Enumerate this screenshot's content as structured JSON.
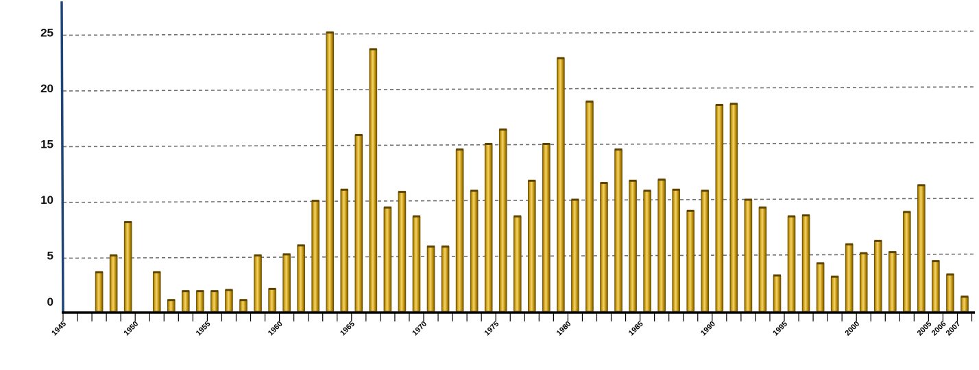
{
  "chart_data": {
    "type": "bar",
    "categories": [
      "1945",
      "1946",
      "1947",
      "1948",
      "1949",
      "1950",
      "1951",
      "1952",
      "1953",
      "1954",
      "1955",
      "1956",
      "1957",
      "1958",
      "1959",
      "1960",
      "1961",
      "1962",
      "1963",
      "1964",
      "1965",
      "1966",
      "1967",
      "1968",
      "1969",
      "1970",
      "1971",
      "1972",
      "1973",
      "1974",
      "1975",
      "1976",
      "1977",
      "1978",
      "1979",
      "1980",
      "1981",
      "1982",
      "1983",
      "1984",
      "1985",
      "1986",
      "1987",
      "1988",
      "1989",
      "1990",
      "1991",
      "1992",
      "1993",
      "1994",
      "1995",
      "1996",
      "1997",
      "1998",
      "1999",
      "2000",
      "2001",
      "2002",
      "2003",
      "2004",
      "2005",
      "2006",
      "2007"
    ],
    "values": [
      0,
      0,
      3.5,
      5,
      8,
      0,
      3.5,
      1,
      1.8,
      1.8,
      1.8,
      1.9,
      1,
      5,
      2,
      5.1,
      5.9,
      9.9,
      25,
      10.9,
      15.8,
      23.5,
      9.3,
      10.7,
      8.5,
      5.8,
      5.8,
      14.5,
      10.8,
      15,
      16.3,
      8.5,
      11.7,
      15,
      22.7,
      10,
      18.8,
      11.5,
      14.5,
      11.7,
      10.8,
      11.8,
      10.9,
      9,
      10.8,
      18.5,
      18.6,
      10,
      9.3,
      3.2,
      8.5,
      8.6,
      4.3,
      3.1,
      6,
      5.2,
      6.3,
      5.3,
      8.9,
      11.3,
      4.5,
      3.3,
      1.3
    ],
    "yticks": [
      "0",
      "5",
      "10",
      "15",
      "20",
      "25"
    ],
    "xtick_labels": [
      {
        "year": 1945,
        "text": "1945"
      },
      {
        "year": 1950,
        "text": "1950"
      },
      {
        "year": 1955,
        "text": "1955"
      },
      {
        "year": 1960,
        "text": "1960"
      },
      {
        "year": 1965,
        "text": "1965"
      },
      {
        "year": 1970,
        "text": "1970"
      },
      {
        "year": 1975,
        "text": "1975"
      },
      {
        "year": 1980,
        "text": "1980"
      },
      {
        "year": 1985,
        "text": "1985"
      },
      {
        "year": 1990,
        "text": "1990"
      },
      {
        "year": 1995,
        "text": "1995"
      },
      {
        "year": 2000,
        "text": "2000"
      },
      {
        "year": 2005,
        "text": "2005"
      },
      {
        "year": 2006,
        "text": "2006"
      },
      {
        "year": 2007,
        "text": "2007"
      }
    ],
    "title": "",
    "xlabel": "",
    "ylabel": "",
    "ylim": [
      0,
      27
    ],
    "grid": "dashed horizontal",
    "legend": "none",
    "colors": {
      "bar_light": "#f3d46a",
      "bar_mid": "#c99a12",
      "bar_dark": "#6a4e00",
      "bar_top": "#5c4300",
      "y_axis": "#1f4477",
      "x_axis": "#000000",
      "grid": "#6e6e6e"
    }
  }
}
